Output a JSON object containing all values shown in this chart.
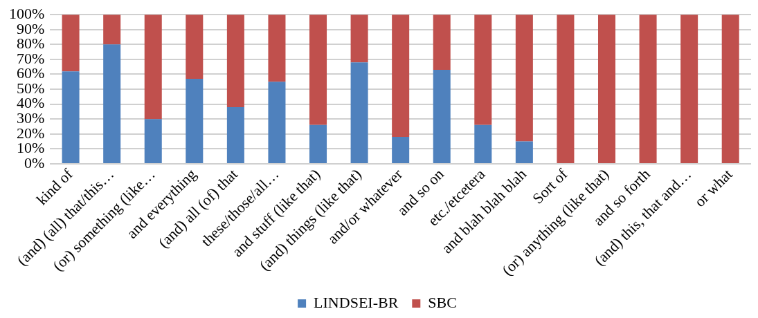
{
  "chart_data": {
    "type": "bar",
    "stacked": true,
    "categories": [
      "kind of",
      "(and) (all) that/this…",
      "(or) something (like…",
      "and everything",
      "(and) all (of) that",
      "these/those/all…",
      "and stuff (like that)",
      "(and) things (like that)",
      "and/or whatever",
      "and so on",
      "etc./etcetera",
      "and blah blah blah",
      "Sort of",
      "(or) anything (like that)",
      "and so forth",
      "(and) this, that and…",
      "or what"
    ],
    "series": [
      {
        "name": "LINDSEI-BR",
        "color": "#4f81bd",
        "values": [
          62,
          80,
          30,
          57,
          38,
          55,
          26,
          68,
          18,
          63,
          26,
          15,
          0,
          0,
          0,
          0,
          0
        ]
      },
      {
        "name": "SBC",
        "color": "#c0504d",
        "values": [
          38,
          20,
          70,
          43,
          62,
          45,
          74,
          32,
          82,
          37,
          74,
          85,
          100,
          100,
          100,
          100,
          100
        ]
      }
    ],
    "ylim": [
      0,
      100
    ],
    "yticks": [
      {
        "value": 0,
        "label": "0%"
      },
      {
        "value": 10,
        "label": "10%"
      },
      {
        "value": 20,
        "label": "20%"
      },
      {
        "value": 30,
        "label": "30%"
      },
      {
        "value": 40,
        "label": "40%"
      },
      {
        "value": 50,
        "label": "50%"
      },
      {
        "value": 60,
        "label": "60%"
      },
      {
        "value": 70,
        "label": "70%"
      },
      {
        "value": 80,
        "label": "80%"
      },
      {
        "value": 90,
        "label": "90%"
      },
      {
        "value": 100,
        "label": "100%"
      }
    ],
    "grid": "y",
    "legend": "bottom"
  }
}
